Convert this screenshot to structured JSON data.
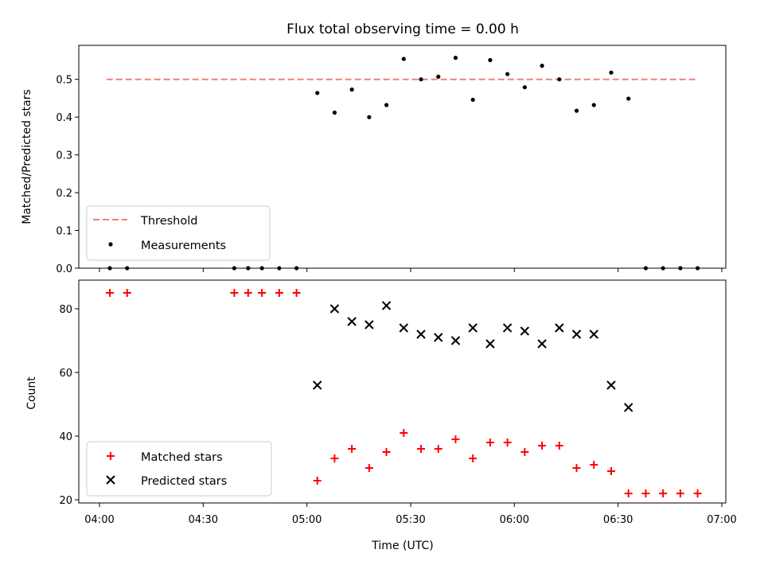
{
  "chart_data": [
    {
      "type": "scatter",
      "title": "Flux total observing time = 0.00 h",
      "ylabel": "Matched/Predicted stars",
      "xlabel": "",
      "ylim": [
        0,
        0.59
      ],
      "yticks": [
        "0.0",
        "0.1",
        "0.2",
        "0.3",
        "0.4",
        "0.5"
      ],
      "legend_position": "lower-left",
      "threshold": {
        "name": "Threshold",
        "value": 0.5,
        "x_range": [
          "04:02",
          "06:53"
        ],
        "color": "#f08080"
      },
      "series": [
        {
          "name": "Measurements",
          "color": "#000000",
          "points": [
            [
              "04:03",
              0
            ],
            [
              "04:08",
              0
            ],
            [
              "04:39",
              0
            ],
            [
              "04:43",
              0
            ],
            [
              "04:47",
              0
            ],
            [
              "04:52",
              0
            ],
            [
              "04:57",
              0
            ],
            [
              "05:03",
              0.464
            ],
            [
              "05:08",
              0.412
            ],
            [
              "05:13",
              0.473
            ],
            [
              "05:18",
              0.4
            ],
            [
              "05:23",
              0.432
            ],
            [
              "05:28",
              0.554
            ],
            [
              "05:33",
              0.5
            ],
            [
              "05:38",
              0.507
            ],
            [
              "05:43",
              0.557
            ],
            [
              "05:48",
              0.446
            ],
            [
              "05:53",
              0.551
            ],
            [
              "05:58",
              0.514
            ],
            [
              "06:03",
              0.479
            ],
            [
              "06:08",
              0.536
            ],
            [
              "06:13",
              0.5
            ],
            [
              "06:18",
              0.417
            ],
            [
              "06:23",
              0.432
            ],
            [
              "06:28",
              0.518
            ],
            [
              "06:33",
              0.449
            ],
            [
              "06:38",
              0
            ],
            [
              "06:43",
              0
            ],
            [
              "06:48",
              0
            ],
            [
              "06:53",
              0
            ]
          ]
        }
      ]
    },
    {
      "type": "scatter",
      "title": "",
      "ylabel": "Count",
      "xlabel": "Time (UTC)",
      "ylim": [
        19,
        89
      ],
      "yticks": [
        "20",
        "40",
        "60",
        "80"
      ],
      "xticks": [
        "04:00",
        "04:30",
        "05:00",
        "05:30",
        "06:00",
        "06:30",
        "07:00"
      ],
      "legend_position": "lower-left",
      "series": [
        {
          "name": "Matched stars",
          "color": "#ff0000",
          "marker": "plus",
          "points": [
            [
              "04:03",
              85
            ],
            [
              "04:08",
              85
            ],
            [
              "04:39",
              85
            ],
            [
              "04:43",
              85
            ],
            [
              "04:47",
              85
            ],
            [
              "04:52",
              85
            ],
            [
              "04:57",
              85
            ],
            [
              "05:03",
              26
            ],
            [
              "05:08",
              33
            ],
            [
              "05:13",
              36
            ],
            [
              "05:18",
              30
            ],
            [
              "05:23",
              35
            ],
            [
              "05:28",
              41
            ],
            [
              "05:33",
              36
            ],
            [
              "05:38",
              36
            ],
            [
              "05:43",
              39
            ],
            [
              "05:48",
              33
            ],
            [
              "05:53",
              38
            ],
            [
              "05:58",
              38
            ],
            [
              "06:03",
              35
            ],
            [
              "06:08",
              37
            ],
            [
              "06:13",
              37
            ],
            [
              "06:18",
              30
            ],
            [
              "06:23",
              31
            ],
            [
              "06:28",
              29
            ],
            [
              "06:33",
              22
            ],
            [
              "06:38",
              22
            ],
            [
              "06:43",
              22
            ],
            [
              "06:48",
              22
            ],
            [
              "06:53",
              22
            ]
          ]
        },
        {
          "name": "Predicted stars",
          "color": "#000000",
          "marker": "x",
          "points": [
            [
              "05:03",
              56
            ],
            [
              "05:08",
              80
            ],
            [
              "05:13",
              76
            ],
            [
              "05:18",
              75
            ],
            [
              "05:23",
              81
            ],
            [
              "05:28",
              74
            ],
            [
              "05:33",
              72
            ],
            [
              "05:38",
              71
            ],
            [
              "05:43",
              70
            ],
            [
              "05:48",
              74
            ],
            [
              "05:53",
              69
            ],
            [
              "05:58",
              74
            ],
            [
              "06:03",
              73
            ],
            [
              "06:08",
              69
            ],
            [
              "06:13",
              74
            ],
            [
              "06:18",
              72
            ],
            [
              "06:23",
              72
            ],
            [
              "06:28",
              56
            ],
            [
              "06:33",
              49
            ]
          ]
        }
      ]
    }
  ]
}
